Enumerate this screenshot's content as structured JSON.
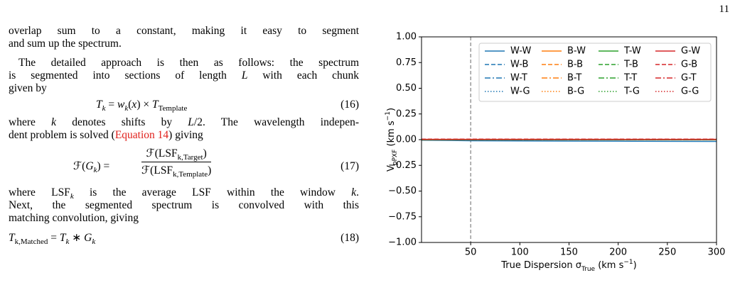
{
  "page_number": "11",
  "body": {
    "lines": [
      [
        "overlap sum to a constant, making it easy to segment"
      ],
      [
        "and sum up the spectrum."
      ],
      [
        "The detailed approach is then as follows: the spectrum"
      ],
      [
        "is segmented into sections of length ",
        "L",
        " with each chunk"
      ],
      [
        "given by"
      ],
      [
        "where ",
        "k",
        " denotes shifts by ",
        "L",
        "/2. The wavelength indepen-"
      ],
      [
        "dent problem is solved (",
        "Equation 14",
        ") giving"
      ],
      [
        "where LSF",
        "k",
        " is the average LSF within the window ",
        "k",
        "."
      ],
      [
        "Next, the segmented spectrum is convolved with this"
      ],
      [
        "matching convolution, giving"
      ]
    ],
    "eq16": {
      "parts": [
        "T",
        "k",
        " = ",
        "w",
        "k",
        "(",
        "x",
        ") × ",
        "T",
        "Template"
      ],
      "number": "(16)"
    },
    "eq17": {
      "lhs": [
        "ℱ(",
        "G",
        "k",
        ") ="
      ],
      "num": [
        "ℱ(LSF",
        "k,Target",
        ")"
      ],
      "den": [
        "ℱ(LSF",
        "k,Template",
        ")"
      ],
      "number": "(17)"
    },
    "eq18": {
      "parts": [
        "T",
        "k,Matched",
        " = ",
        "T",
        "k",
        " ∗ ",
        "G",
        "k"
      ],
      "number": "(18)"
    }
  },
  "chart_data": {
    "type": "line",
    "xlabel": [
      "True Dispersion σ",
      "True",
      " (km s",
      "−1",
      ")"
    ],
    "ylabel": [
      "V",
      "pPXF",
      " (km s",
      "−1",
      ")"
    ],
    "x": [
      0,
      50,
      100,
      150,
      200,
      250,
      300
    ],
    "xlim": [
      0,
      300
    ],
    "xticks": [
      50,
      100,
      150,
      200,
      250,
      300
    ],
    "ylim": [
      -1,
      1
    ],
    "yticks": [
      {
        "value": -1,
        "label": "−1.00"
      },
      {
        "value": -0.75,
        "label": "−0.75"
      },
      {
        "value": -0.5,
        "label": "−0.50"
      },
      {
        "value": -0.25,
        "label": "−0.25"
      },
      {
        "value": 0,
        "label": "0.00"
      },
      {
        "value": 0.25,
        "label": "0.25"
      },
      {
        "value": 0.5,
        "label": "0.50"
      },
      {
        "value": 0.75,
        "label": "0.75"
      },
      {
        "value": 1,
        "label": "1.00"
      }
    ],
    "vline": {
      "x": 50,
      "color": "#808080"
    },
    "legend": "upper right",
    "series": [
      {
        "name": "W-W",
        "color": "#1f77b4",
        "linestyle": "solid",
        "values": [
          -0.005,
          -0.01,
          -0.012,
          -0.014,
          -0.015,
          -0.016,
          -0.017
        ]
      },
      {
        "name": "W-B",
        "color": "#1f77b4",
        "linestyle": "dashed",
        "values": [
          0,
          0,
          0,
          0,
          0,
          0,
          0
        ]
      },
      {
        "name": "W-T",
        "color": "#1f77b4",
        "linestyle": "dashdot",
        "values": [
          0,
          0,
          0,
          0,
          0,
          0,
          0
        ]
      },
      {
        "name": "W-G",
        "color": "#1f77b4",
        "linestyle": "dotted",
        "values": [
          0,
          0,
          0,
          0,
          0,
          0,
          0
        ]
      },
      {
        "name": "B-W",
        "color": "#ff7f0e",
        "linestyle": "solid",
        "values": [
          0,
          0,
          0,
          0,
          0,
          0,
          0
        ]
      },
      {
        "name": "B-B",
        "color": "#ff7f0e",
        "linestyle": "dashed",
        "values": [
          0,
          0,
          0,
          0,
          0,
          0,
          0
        ]
      },
      {
        "name": "B-T",
        "color": "#ff7f0e",
        "linestyle": "dashdot",
        "values": [
          0,
          0,
          0,
          0,
          0,
          0,
          0
        ]
      },
      {
        "name": "B-G",
        "color": "#ff7f0e",
        "linestyle": "dotted",
        "values": [
          0,
          0,
          0,
          0,
          0,
          0,
          0
        ]
      },
      {
        "name": "T-W",
        "color": "#2ca02c",
        "linestyle": "solid",
        "values": [
          0,
          0,
          0,
          0,
          0,
          0,
          0
        ]
      },
      {
        "name": "T-B",
        "color": "#2ca02c",
        "linestyle": "dashed",
        "values": [
          0,
          0,
          0,
          0,
          0,
          0,
          0
        ]
      },
      {
        "name": "T-T",
        "color": "#2ca02c",
        "linestyle": "dashdot",
        "values": [
          0,
          0,
          0,
          0,
          0,
          0,
          0
        ]
      },
      {
        "name": "T-G",
        "color": "#2ca02c",
        "linestyle": "dotted",
        "values": [
          0,
          0,
          0,
          0,
          0,
          0,
          0
        ]
      },
      {
        "name": "G-W",
        "color": "#d62728",
        "linestyle": "solid",
        "values": [
          0.003,
          0.003,
          0.003,
          0.003,
          0.003,
          0.003,
          0.003
        ]
      },
      {
        "name": "G-B",
        "color": "#d62728",
        "linestyle": "dashed",
        "values": [
          0.005,
          0.005,
          0.005,
          0.005,
          0.005,
          0.005,
          0.005
        ]
      },
      {
        "name": "G-T",
        "color": "#d62728",
        "linestyle": "dashdot",
        "values": [
          0.003,
          0.003,
          0.003,
          0.003,
          0.003,
          0.003,
          0.003
        ]
      },
      {
        "name": "G-G",
        "color": "#d62728",
        "linestyle": "dotted",
        "values": [
          0.003,
          0.003,
          0.003,
          0.003,
          0.003,
          0.003,
          0.003
        ]
      }
    ]
  }
}
